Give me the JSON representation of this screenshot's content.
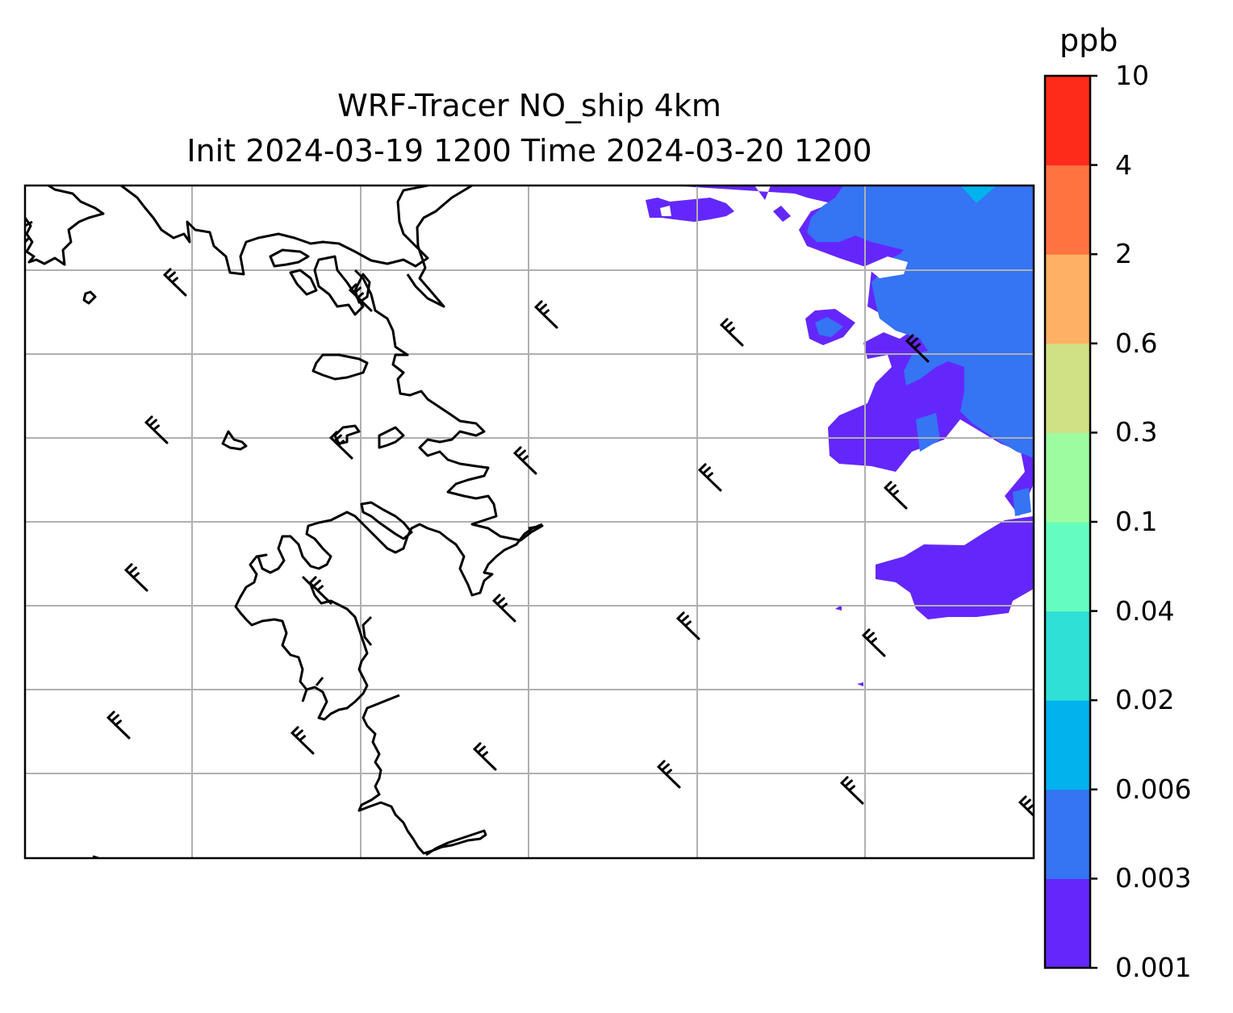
{
  "title": {
    "line1": "WRF-Tracer NO_ship 4km",
    "line2": "Init 2024-03-19 1200 Time 2024-03-20 1200"
  },
  "colorbar": {
    "unit": "ppb",
    "ticks": [
      "0.001",
      "0.003",
      "0.006",
      "0.02",
      "0.04",
      "0.1",
      "0.3",
      "0.6",
      "2",
      "4",
      "10"
    ],
    "colors": [
      "#6427fb",
      "#3574f3",
      "#01b2ec",
      "#2fe0d6",
      "#65fdbf",
      "#9cfc9f",
      "#d0e085",
      "#feb164",
      "#fe7340",
      "#fe2a1a"
    ]
  },
  "map": {
    "gridlines": true,
    "layers": [
      "coastline",
      "tracer-contour-fill",
      "wind-barbs"
    ]
  }
}
